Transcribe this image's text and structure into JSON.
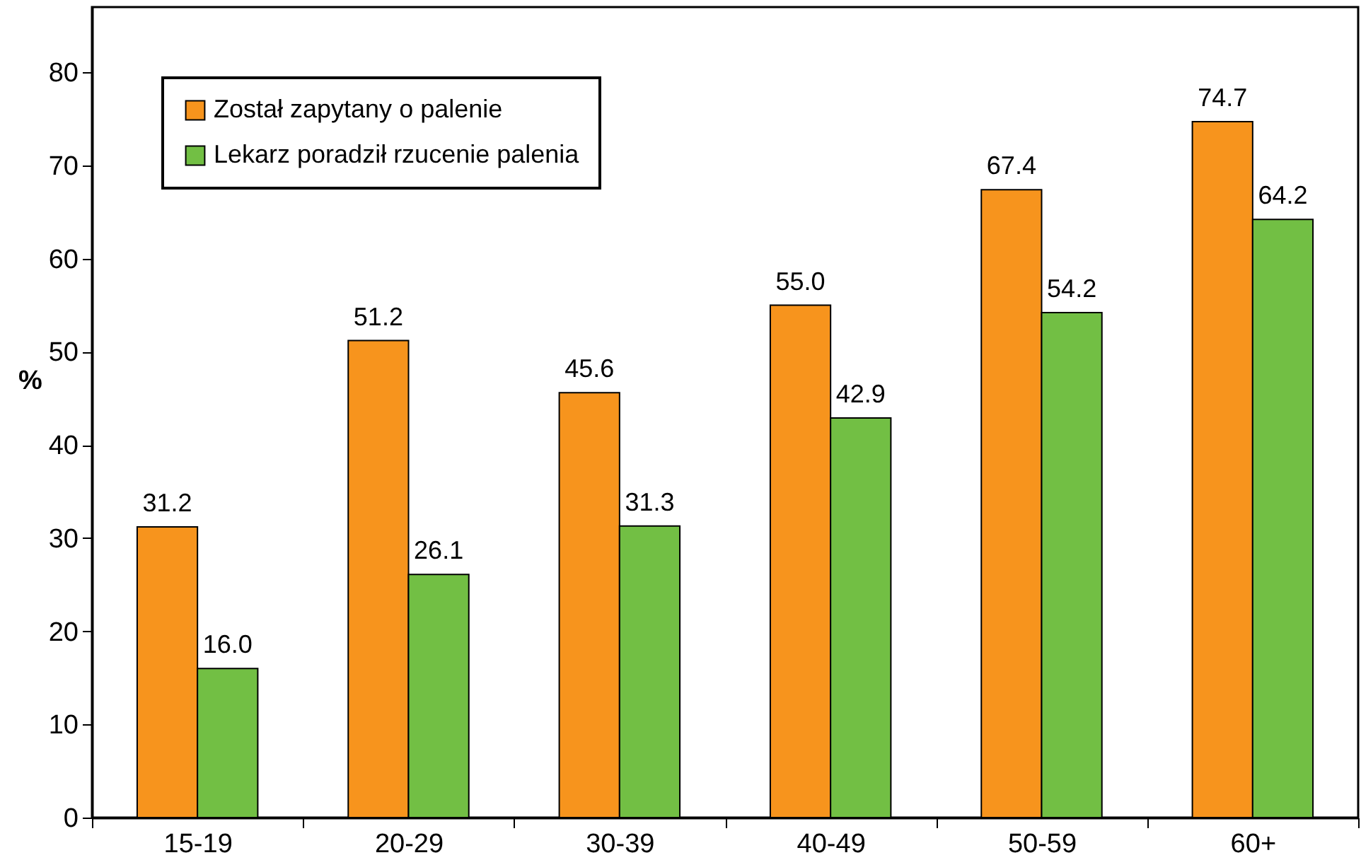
{
  "chart_data": {
    "type": "bar",
    "ylabel": "%",
    "categories": [
      "15-19",
      "20-29",
      "30-39",
      "40-49",
      "50-59",
      "60+"
    ],
    "series": [
      {
        "name": "Został zapytany o palenie",
        "color": "#f7941d",
        "values": [
          31.2,
          51.2,
          45.6,
          55.0,
          67.4,
          74.7
        ],
        "value_labels": [
          "31.2",
          "51.2",
          "45.6",
          "55.0",
          "67.4",
          "74.7"
        ]
      },
      {
        "name": "Lekarz poradził rzucenie palenia",
        "color": "#72bf44",
        "values": [
          16.0,
          26.1,
          31.3,
          42.9,
          54.2,
          64.2
        ],
        "value_labels": [
          "16.0",
          "26.1",
          "31.3",
          "42.9",
          "54.2",
          "64.2"
        ]
      }
    ],
    "ylim": [
      0,
      87
    ],
    "yticks": [
      0,
      10,
      20,
      30,
      40,
      50,
      60,
      70,
      80
    ],
    "legend": "top left",
    "grid": false
  }
}
